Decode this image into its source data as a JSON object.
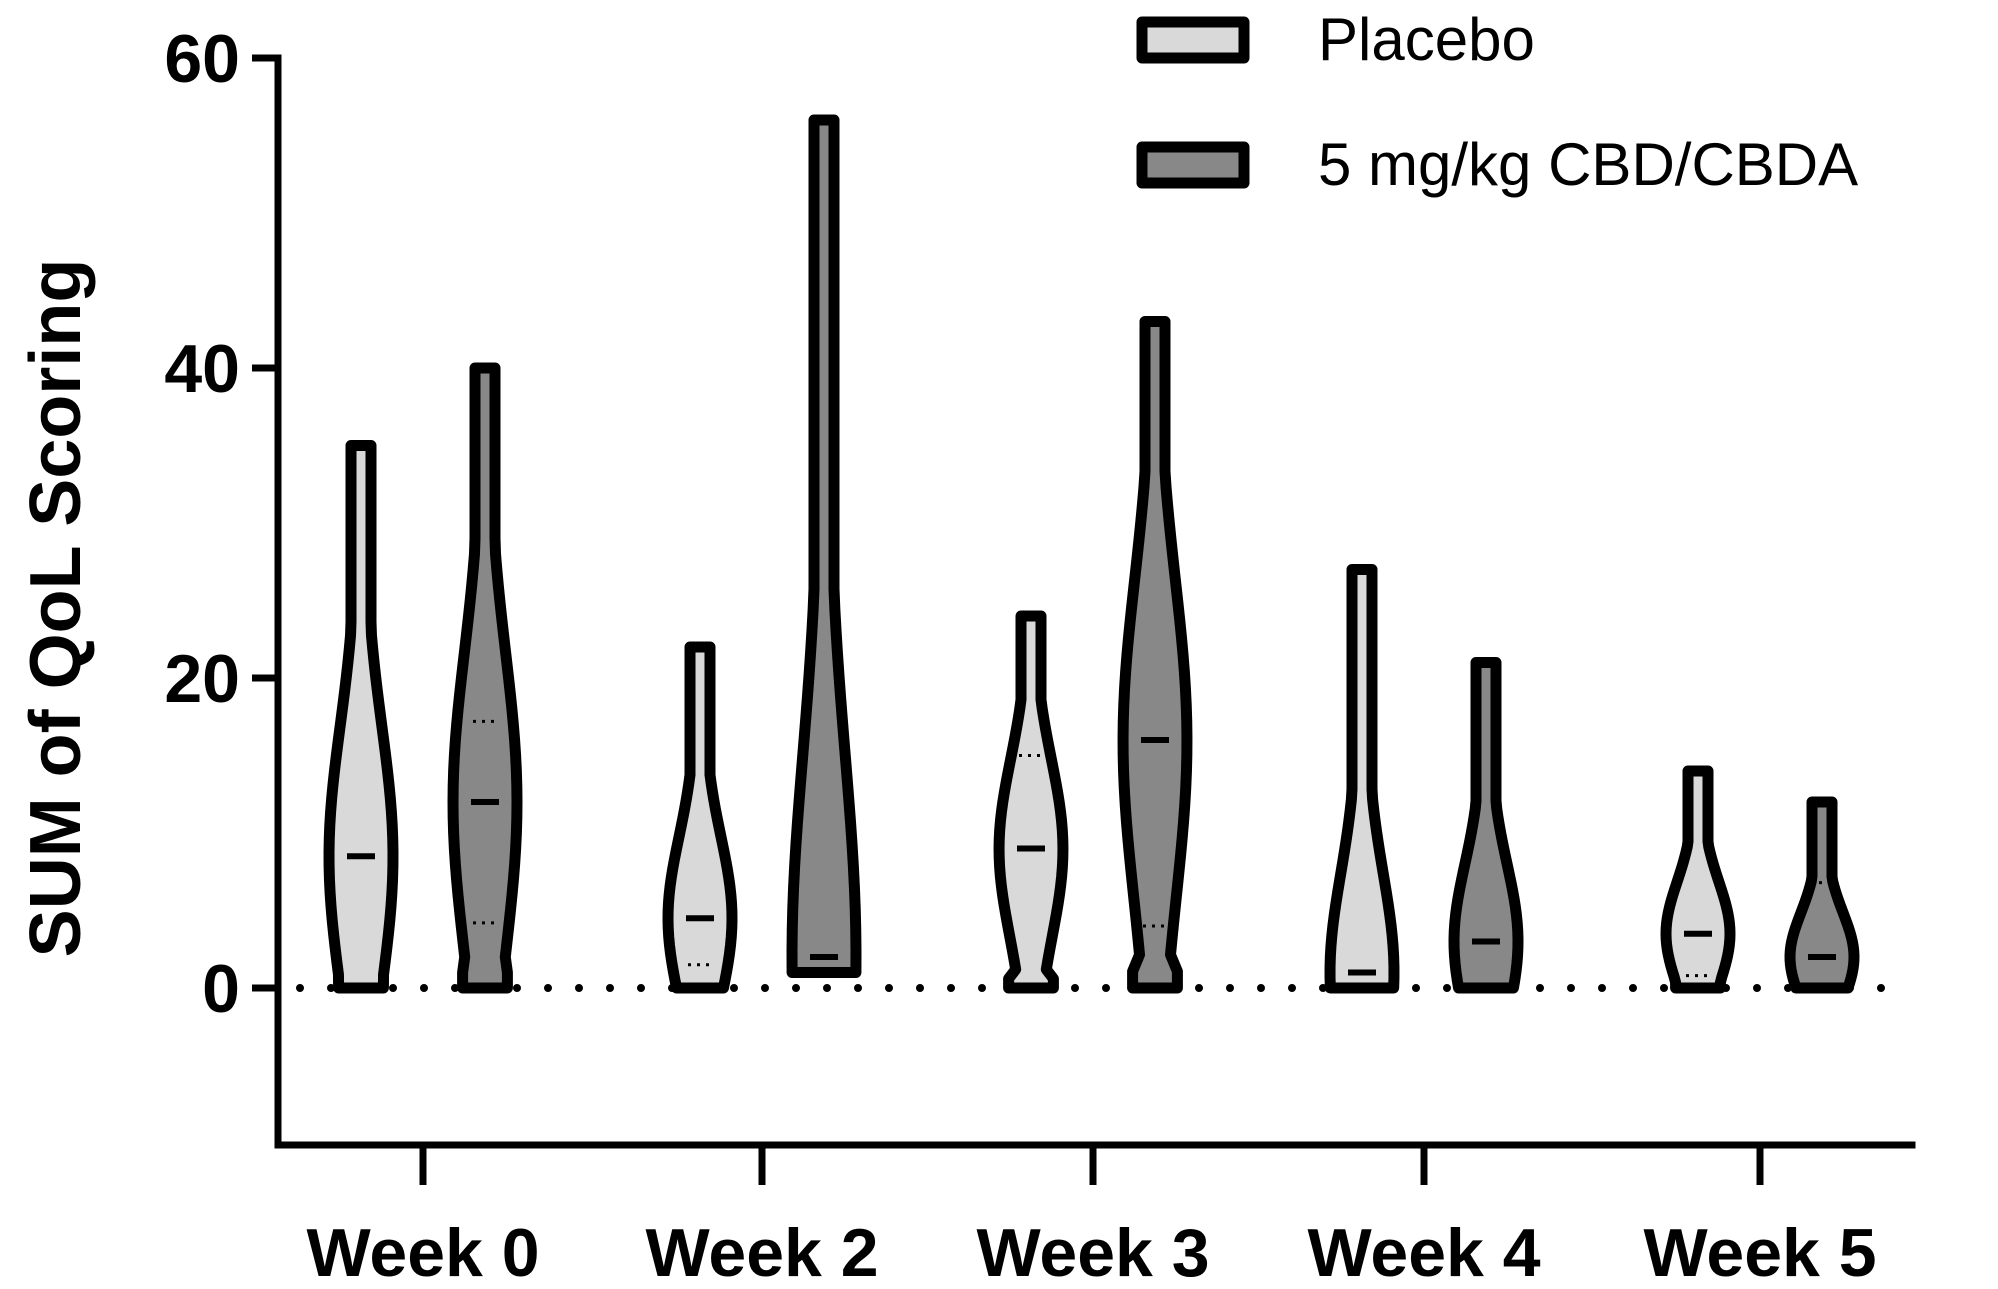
{
  "chart_data": {
    "type": "violin",
    "ylabel": "SUM of QoL Scoring",
    "xlabel": "",
    "ylim": [
      -10,
      60
    ],
    "yticks": [
      0,
      20,
      40,
      60
    ],
    "categories": [
      "Week 0",
      "Week 2",
      "Week 3",
      "Week 4",
      "Week 5"
    ],
    "reference_line": {
      "y": 0,
      "style": "dotted"
    },
    "legend_position": "top-right",
    "series": [
      {
        "name": "Placebo",
        "color": "#d9d9d9",
        "violins": [
          {
            "min": 0,
            "max": 35,
            "median": 8.5,
            "q1": null,
            "q3": null
          },
          {
            "min": 0,
            "max": 22,
            "median": 4.5,
            "q1": 1.5,
            "q3": null
          },
          {
            "min": 0,
            "max": 24,
            "median": 9,
            "q1": null,
            "q3": 15
          },
          {
            "min": 0,
            "max": 27,
            "median": 1,
            "q1": null,
            "q3": null
          },
          {
            "min": 0,
            "max": 14,
            "median": 3.5,
            "q1": 0.8,
            "q3": null
          }
        ]
      },
      {
        "name": "5 mg/kg CBD/CBDA",
        "color": "#888888",
        "violins": [
          {
            "min": 0,
            "max": 40,
            "median": 12,
            "q1": 4.2,
            "q3": 17.2
          },
          {
            "min": 1,
            "max": 56,
            "median": 2,
            "q1": null,
            "q3": null
          },
          {
            "min": 0,
            "max": 43,
            "median": 16,
            "q1": 4,
            "q3": null
          },
          {
            "min": 0,
            "max": 21,
            "median": 3,
            "q1": null,
            "q3": null
          },
          {
            "min": 0,
            "max": 12,
            "median": 2,
            "q1": null,
            "q3": 6.8
          }
        ]
      }
    ]
  }
}
